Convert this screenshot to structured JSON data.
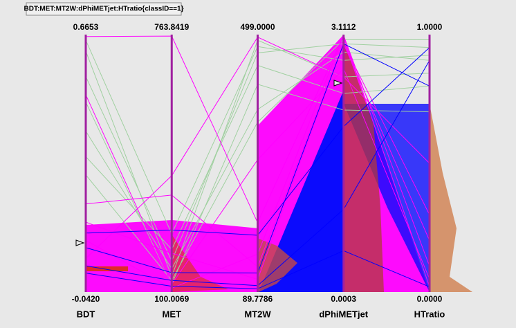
{
  "chart_data": {
    "type": "parallel",
    "title": "BDT:MET:MT2W:dPhiMETjet:HTratio{classID==1}",
    "axes": [
      {
        "name": "BDT",
        "min": {
          "value": -0.042,
          "label": "-0.0420"
        },
        "max": 0.6653
      },
      {
        "name": "MET",
        "min": 100.0069,
        "max": 763.8419
      },
      {
        "name": "MT2W",
        "min": 89.7786,
        "max": {
          "value": 499,
          "label": "499.0000"
        }
      },
      {
        "name": "dPhiMETjet",
        "min": 0.0003,
        "max": 3.1112
      },
      {
        "name": "HTratio",
        "min": {
          "value": 0,
          "label": "0.0000"
        },
        "max": {
          "value": 1,
          "label": "1.0000"
        }
      }
    ],
    "lines": [
      {
        "color": "#a0d0a0",
        "values": [
          0.62,
          140,
          490,
          2.6,
          0.85
        ]
      },
      {
        "color": "#a0d0a0",
        "values": [
          0.55,
          180,
          470,
          3.0,
          0.95
        ]
      },
      {
        "color": "#a0d0a0",
        "values": [
          0.48,
          120,
          420,
          2.2,
          0.7
        ]
      },
      {
        "color": "#a0d0a0",
        "values": [
          0.4,
          160,
          380,
          2.9,
          0.9
        ]
      },
      {
        "color": "#a0d0a0",
        "values": [
          0.33,
          210,
          450,
          2.4,
          0.8
        ]
      },
      {
        "color": "#a0d0a0",
        "values": [
          0.28,
          130,
          360,
          3.05,
          0.98
        ]
      },
      {
        "color": "#a0d0a0",
        "values": [
          0.65,
          250,
          480,
          2.8,
          0.92
        ]
      },
      {
        "color": "#ff00ff",
        "values": [
          0.66,
          760,
          200,
          3.1,
          0.1
        ]
      },
      {
        "color": "#ff00ff",
        "values": [
          0.2,
          350,
          130,
          3.0,
          0.3
        ]
      },
      {
        "color": "#ff00ff",
        "values": [
          0.5,
          120,
          300,
          2.7,
          0.05
        ]
      },
      {
        "color": "#ff00ff",
        "values": [
          0.1,
          110,
          150,
          3.1,
          0.02
        ]
      },
      {
        "color": "#ff00ff",
        "values": [
          0.05,
          400,
          495,
          2.6,
          0.5
        ]
      },
      {
        "color": "#ff00ff",
        "values": [
          0.15,
          200,
          110,
          3.0,
          0.2
        ]
      },
      {
        "color": "#0000ff",
        "values": [
          0.03,
          130,
          100,
          1.0,
          0.9
        ]
      },
      {
        "color": "#0000ff",
        "values": [
          0.08,
          150,
          120,
          3.0,
          0.8
        ]
      },
      {
        "color": "#0000ff",
        "values": [
          0.01,
          115,
          95,
          0.5,
          0.02
        ]
      },
      {
        "color": "#0000ff",
        "values": [
          0.12,
          260,
          180,
          2.0,
          0.95
        ]
      }
    ]
  }
}
